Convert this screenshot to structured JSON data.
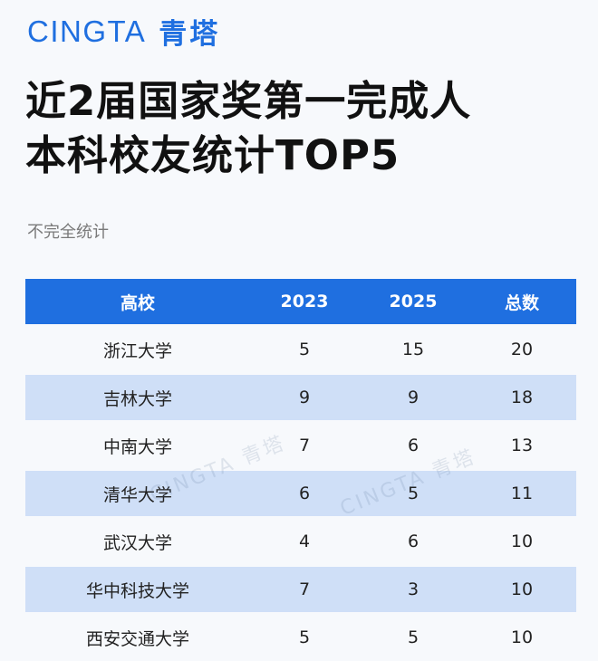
{
  "brand": {
    "en": "CINGTA",
    "cn": "青塔"
  },
  "title": {
    "line1": "近2届国家奖第一完成人",
    "line2": "本科校友统计TOP5"
  },
  "note": "不完全统计",
  "table": {
    "headers": [
      "高校",
      "2023",
      "2025",
      "总数"
    ],
    "rows": [
      [
        "浙江大学",
        "5",
        "15",
        "20"
      ],
      [
        "吉林大学",
        "9",
        "9",
        "18"
      ],
      [
        "中南大学",
        "7",
        "6",
        "13"
      ],
      [
        "清华大学",
        "6",
        "5",
        "11"
      ],
      [
        "武汉大学",
        "4",
        "6",
        "10"
      ],
      [
        "华中科技大学",
        "7",
        "3",
        "10"
      ],
      [
        "西安交通大学",
        "5",
        "5",
        "10"
      ]
    ]
  },
  "watermark": "CINGTA 青塔",
  "colors": {
    "accent": "#1f6fe0",
    "row_alt": "#cfdff7",
    "background": "#f7f9fc"
  }
}
